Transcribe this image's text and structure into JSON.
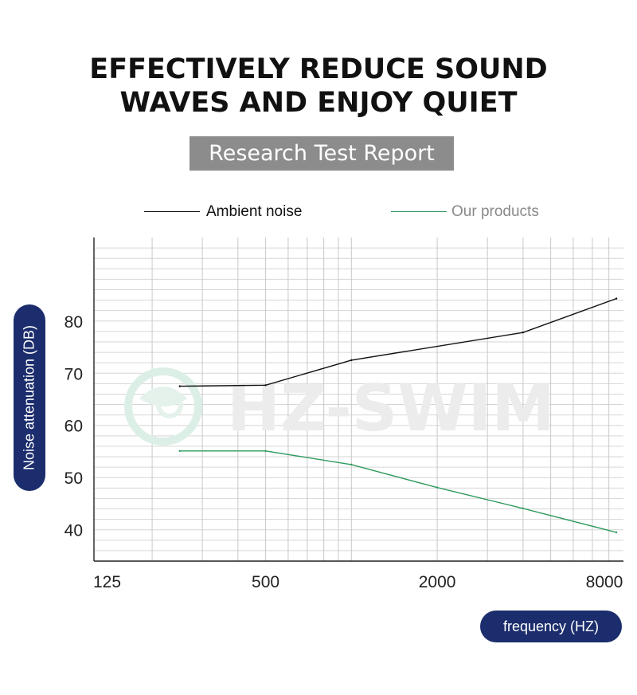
{
  "headline": {
    "line1": "EFFECTIVELY REDUCE SOUND",
    "line2": "WAVES AND ENJOY QUIET"
  },
  "banner": {
    "label": "Research Test Report"
  },
  "watermark": {
    "text": "HZ-SWIM"
  },
  "chart_data": {
    "type": "line",
    "title": "Research Test Report",
    "xlabel": "frequency  (HZ)",
    "ylabel": "Noise attenuation (DB)",
    "x_scale": "log2",
    "xlim": [
      125,
      9000
    ],
    "ylim": [
      34,
      96
    ],
    "x_ticks": [
      125,
      500,
      2000,
      8000
    ],
    "x_tick_labels": [
      "125",
      "500",
      "2000",
      "8000"
    ],
    "y_ticks": [
      40,
      50,
      60,
      70,
      80
    ],
    "y_tick_labels": [
      "40",
      "50",
      "60",
      "70",
      "80"
    ],
    "grid": true,
    "legend_position": "top",
    "series": [
      {
        "name": "Ambient noise",
        "color": "#111111",
        "x": [
          250,
          500,
          1000,
          4000,
          8500
        ],
        "y": [
          67.5,
          67.7,
          72.5,
          77.8,
          84.3
        ]
      },
      {
        "name": "Our products",
        "color": "#2f9a5e",
        "x": [
          250,
          500,
          1000,
          2000,
          4000,
          8500
        ],
        "y": [
          55.1,
          55.1,
          52.5,
          48.1,
          44.1,
          39.5
        ]
      }
    ]
  }
}
